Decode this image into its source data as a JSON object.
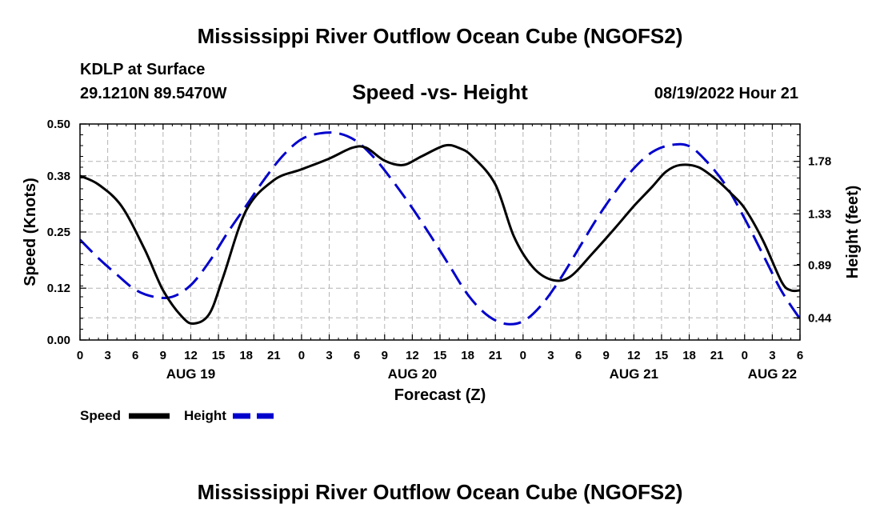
{
  "chart_data": {
    "type": "line",
    "title": "Mississippi River Outflow Ocean Cube (NGOFS2)",
    "station": "KDLP at Surface",
    "coordinates": "29.1210N  89.5470W",
    "subtitle": "Speed -vs- Height",
    "datetime": "08/19/2022 Hour 21",
    "xlabel": "Forecast (Z)",
    "ylabel_left": "Speed (Knots)",
    "ylabel_right": "Height (feet)",
    "x_hours_range": [
      0,
      78
    ],
    "x_tick_labels": [
      "0",
      "3",
      "6",
      "9",
      "12",
      "15",
      "18",
      "21",
      "0",
      "3",
      "6",
      "9",
      "12",
      "15",
      "18",
      "21",
      "0",
      "3",
      "6",
      "9",
      "12",
      "15",
      "18",
      "21",
      "0",
      "3",
      "6"
    ],
    "day_labels": [
      {
        "hour": 12,
        "label": "AUG 19"
      },
      {
        "hour": 36,
        "label": "AUG 20"
      },
      {
        "hour": 60,
        "label": "AUG 21"
      },
      {
        "hour": 75,
        "label": "AUG 22"
      }
    ],
    "left_axis": {
      "ylim": [
        0,
        0.5
      ],
      "ticks": [
        0.0,
        0.12,
        0.25,
        0.38,
        0.5
      ],
      "tick_labels": [
        "0.00",
        "0.12",
        "0.25",
        "0.38",
        "0.50"
      ]
    },
    "right_axis": {
      "ylim": [
        0.25,
        2.1
      ],
      "ticks": [
        0.44,
        0.89,
        1.33,
        1.78
      ],
      "tick_labels": [
        "0.44",
        "0.89",
        "1.33",
        "1.78"
      ]
    },
    "grid": true,
    "series": [
      {
        "name": "Speed",
        "axis": "left",
        "color": "#000000",
        "dash": "solid",
        "x": [
          0,
          2,
          4.5,
          7,
          9,
          11,
          12.3,
          14,
          15.5,
          18,
          21,
          24,
          27,
          29.5,
          31,
          33,
          35,
          37,
          39.5,
          41,
          42.5,
          45,
          47,
          49,
          51,
          53,
          55.5,
          58,
          60,
          62,
          63.5,
          65,
          67,
          69,
          70.5,
          72,
          74,
          76,
          77,
          78
        ],
        "values": [
          0.38,
          0.36,
          0.31,
          0.21,
          0.115,
          0.055,
          0.038,
          0.06,
          0.145,
          0.3,
          0.37,
          0.395,
          0.42,
          0.445,
          0.445,
          0.415,
          0.405,
          0.425,
          0.45,
          0.445,
          0.425,
          0.36,
          0.24,
          0.17,
          0.14,
          0.145,
          0.2,
          0.26,
          0.31,
          0.355,
          0.39,
          0.405,
          0.4,
          0.37,
          0.34,
          0.305,
          0.23,
          0.135,
          0.115,
          0.115
        ]
      },
      {
        "name": "Height",
        "axis": "right",
        "color": "#0000cc",
        "dash": "dashed",
        "x": [
          0,
          2,
          4,
          6,
          8,
          10,
          12,
          14,
          16,
          18,
          20,
          22,
          24,
          26,
          28,
          30,
          32,
          34,
          36,
          38,
          40,
          42,
          44,
          46,
          48,
          50,
          52,
          54,
          56,
          58,
          60,
          62,
          64,
          66,
          68,
          70,
          72,
          74,
          76,
          78
        ],
        "values": [
          1.11,
          0.95,
          0.81,
          0.68,
          0.62,
          0.62,
          0.72,
          0.92,
          1.17,
          1.4,
          1.63,
          1.83,
          1.97,
          2.02,
          2.02,
          1.95,
          1.8,
          1.6,
          1.38,
          1.14,
          0.89,
          0.64,
          0.47,
          0.39,
          0.41,
          0.55,
          0.77,
          1.03,
          1.29,
          1.52,
          1.72,
          1.86,
          1.92,
          1.91,
          1.77,
          1.57,
          1.29,
          0.98,
          0.67,
          0.43
        ]
      }
    ],
    "legend": {
      "position": "bottom-left",
      "entries": [
        "Speed",
        "Height"
      ]
    }
  }
}
